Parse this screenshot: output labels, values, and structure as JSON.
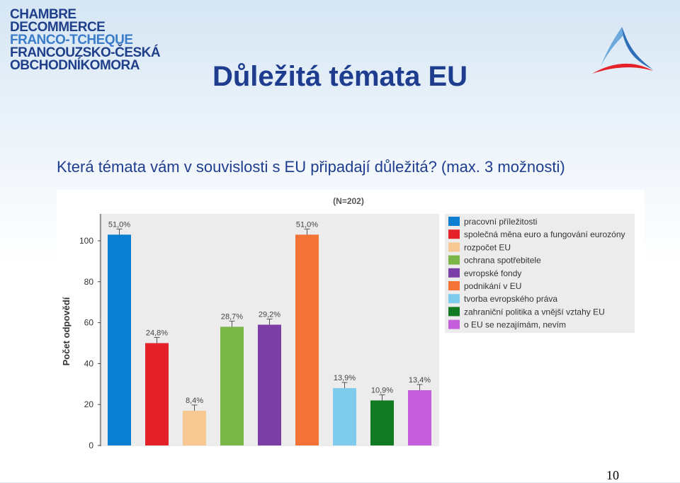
{
  "logo": {
    "lines": [
      "CHAMBRE",
      "DECOMMERCE",
      "FRANCO-TCHEQUE",
      "FRANCOUZSKO-ČESKÁ",
      "OBCHODNÍKOMORA"
    ]
  },
  "slide": {
    "title": "Důležitá témata EU",
    "subtitle": "Která témata vám v souvislosti s EU připadají důležitá? (max. 3 možnosti)",
    "page_number": "10"
  },
  "chart_data": {
    "type": "bar",
    "title": "(N=202)",
    "ylabel": "Počet odpovědí",
    "xlabel": "",
    "ylim": [
      0,
      110
    ],
    "yticks": [
      "0",
      "20",
      "40",
      "60",
      "80",
      "100"
    ],
    "grid": false,
    "legend_position": "top-right",
    "categories": [
      "pracovní příležitosti",
      "společná měna euro a fungování eurozóny",
      "rozpočet EU",
      "ochrana spotřebitele",
      "evropské fondy",
      "podnikání v EU",
      "tvorba evropského práva",
      "zahraniční politika a vnější vztahy EU",
      "o EU se nezajímám, nevím"
    ],
    "values": [
      103,
      50,
      17,
      58,
      59,
      103,
      28,
      22,
      27
    ],
    "data_labels": [
      "51,0%",
      "24,8%",
      "8,4%",
      "28,7%",
      "29,2%",
      "51,0%",
      "13,9%",
      "10,9%",
      "13,4%"
    ],
    "colors": [
      "#0a7fd1",
      "#e52229",
      "#f8c892",
      "#7ab648",
      "#7a3ea6",
      "#f37336",
      "#7dcbed",
      "#117a22",
      "#c45edb"
    ]
  }
}
